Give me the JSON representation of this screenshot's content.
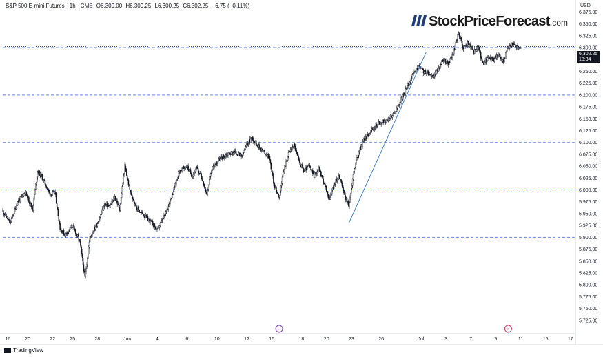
{
  "header": {
    "symbol": "S&P 500 E-mini Futures · 1h · CME",
    "open": "O6,309.00",
    "high": "H6,309.25",
    "low": "L6,300.25",
    "close": "C6,302.25",
    "change": "−6.75 (−0.11%)"
  },
  "logo": {
    "name": "StockPriceForecast",
    "domain": ".com"
  },
  "currency": "USD",
  "last_price": {
    "value": "6,302.25",
    "countdown": "18:34"
  },
  "attribution": "TradingView",
  "colors": {
    "candle": "#131722",
    "trendline": "#3d7ce0",
    "level_line": "#2962ff",
    "current_line": "#131722",
    "axis_text": "#131722",
    "border": "#d1d4dc",
    "logo_mark": "#1f3d7a"
  },
  "chart_data": {
    "type": "candlestick",
    "title": "",
    "xlabel": "",
    "ylabel": "",
    "ylim": [
      5700,
      6380
    ],
    "xlim": [
      0,
      115
    ],
    "x_unit": "trading days; day 0 = May 15",
    "x_ticks": [
      {
        "x": 1,
        "label": "16"
      },
      {
        "x": 5,
        "label": "20"
      },
      {
        "x": 10,
        "label": "22"
      },
      {
        "x": 14,
        "label": "25"
      },
      {
        "x": 19,
        "label": "28"
      },
      {
        "x": 25,
        "label": "Jun"
      },
      {
        "x": 31,
        "label": "4"
      },
      {
        "x": 37,
        "label": "6"
      },
      {
        "x": 43,
        "label": "10"
      },
      {
        "x": 49,
        "label": "12"
      },
      {
        "x": 54,
        "label": "15"
      },
      {
        "x": 60,
        "label": "18"
      },
      {
        "x": 65,
        "label": "20"
      },
      {
        "x": 70,
        "label": "23"
      },
      {
        "x": 76,
        "label": "26"
      },
      {
        "x": 84,
        "label": "Jul"
      },
      {
        "x": 89,
        "label": "3"
      },
      {
        "x": 94,
        "label": "7"
      },
      {
        "x": 99,
        "label": "9"
      },
      {
        "x": 104,
        "label": "11"
      },
      {
        "x": 109,
        "label": "15"
      },
      {
        "x": 114,
        "label": "17"
      }
    ],
    "y_ticks": [
      5725,
      5750,
      5775,
      5800,
      5825,
      5850,
      5875,
      5900,
      5925,
      5950,
      5975,
      6000,
      6025,
      6050,
      6075,
      6100,
      6125,
      6150,
      6175,
      6200,
      6225,
      6250,
      6275,
      6300,
      6325,
      6350,
      6375
    ],
    "price_path": [
      [
        0,
        5955
      ],
      [
        1.5,
        5930
      ],
      [
        3,
        5975
      ],
      [
        4.5,
        5995
      ],
      [
        6,
        5960
      ],
      [
        7,
        6040
      ],
      [
        8,
        6025
      ],
      [
        9.5,
        5990
      ],
      [
        10.5,
        5995
      ],
      [
        11.5,
        5920
      ],
      [
        12.5,
        5905
      ],
      [
        14,
        5925
      ],
      [
        15.5,
        5890
      ],
      [
        16.5,
        5815
      ],
      [
        17.5,
        5900
      ],
      [
        19,
        5930
      ],
      [
        20.5,
        5970
      ],
      [
        21.5,
        5965
      ],
      [
        22.5,
        5985
      ],
      [
        23.5,
        5960
      ],
      [
        24.5,
        6050
      ],
      [
        25.5,
        6000
      ],
      [
        27,
        5960
      ],
      [
        28.5,
        5945
      ],
      [
        30,
        5930
      ],
      [
        31,
        5915
      ],
      [
        32.5,
        5945
      ],
      [
        34,
        5990
      ],
      [
        35.5,
        6040
      ],
      [
        37,
        6050
      ],
      [
        38,
        6030
      ],
      [
        39,
        6045
      ],
      [
        40,
        6025
      ],
      [
        41,
        5990
      ],
      [
        42,
        6045
      ],
      [
        43.5,
        6065
      ],
      [
        45,
        6075
      ],
      [
        46.5,
        6080
      ],
      [
        48,
        6070
      ],
      [
        49,
        6095
      ],
      [
        50,
        6110
      ],
      [
        51.5,
        6090
      ],
      [
        52.5,
        6080
      ],
      [
        53.5,
        6070
      ],
      [
        54.5,
        6010
      ],
      [
        55.5,
        5985
      ],
      [
        56.5,
        6045
      ],
      [
        57.5,
        6080
      ],
      [
        58.5,
        6095
      ],
      [
        59.5,
        6060
      ],
      [
        60.5,
        6040
      ],
      [
        61.5,
        6050
      ],
      [
        62.5,
        6030
      ],
      [
        63.5,
        6045
      ],
      [
        64.5,
        6015
      ],
      [
        65.5,
        5980
      ],
      [
        66.5,
        6010
      ],
      [
        67.5,
        6030
      ],
      [
        68.5,
        5995
      ],
      [
        69.5,
        5965
      ],
      [
        70.5,
        6040
      ],
      [
        71.5,
        6080
      ],
      [
        72.5,
        6105
      ],
      [
        74,
        6125
      ],
      [
        75.5,
        6140
      ],
      [
        77,
        6145
      ],
      [
        78.5,
        6160
      ],
      [
        79.5,
        6180
      ],
      [
        80.5,
        6200
      ],
      [
        82,
        6235
      ],
      [
        83.5,
        6260
      ],
      [
        84.5,
        6250
      ],
      [
        85.5,
        6245
      ],
      [
        86.5,
        6240
      ],
      [
        87.5,
        6255
      ],
      [
        88.5,
        6275
      ],
      [
        89.5,
        6265
      ],
      [
        90.5,
        6290
      ],
      [
        91.5,
        6330
      ],
      [
        92.5,
        6300
      ],
      [
        93.5,
        6310
      ],
      [
        94.5,
        6290
      ],
      [
        95.5,
        6300
      ],
      [
        96.5,
        6265
      ],
      [
        97.5,
        6280
      ],
      [
        98.5,
        6275
      ],
      [
        99.5,
        6285
      ],
      [
        100.5,
        6270
      ],
      [
        101.5,
        6300
      ],
      [
        102.5,
        6310
      ],
      [
        103.5,
        6298
      ],
      [
        104,
        6302.25
      ]
    ],
    "candles_per_day": 8,
    "horizontal_levels": [
      5900,
      6000,
      6100,
      6200,
      6300
    ],
    "current_price": 6302.25,
    "trendline": {
      "from": [
        69.5,
        5930
      ],
      "to": [
        85,
        6290
      ]
    },
    "event_markers": [
      {
        "x": 55.5,
        "label": "↔"
      },
      {
        "x": 101.5,
        "label": "⚡"
      }
    ]
  }
}
